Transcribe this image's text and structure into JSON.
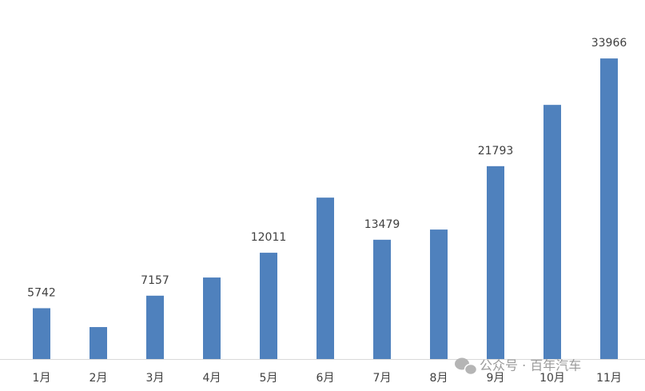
{
  "chart_data": {
    "type": "bar",
    "categories": [
      "1月",
      "2月",
      "3月",
      "4月",
      "5月",
      "6月",
      "7月",
      "8月",
      "9月",
      "10月",
      "11月"
    ],
    "values": [
      5742,
      3610,
      7157,
      9210,
      12011,
      18240,
      13479,
      14630,
      21793,
      28720,
      33966
    ],
    "show_label": [
      true,
      false,
      true,
      false,
      true,
      false,
      true,
      false,
      true,
      false,
      true
    ],
    "color": "#4f81bd",
    "ylim": [
      0,
      37500
    ],
    "watermark": "公众号 · 百年汽车"
  }
}
